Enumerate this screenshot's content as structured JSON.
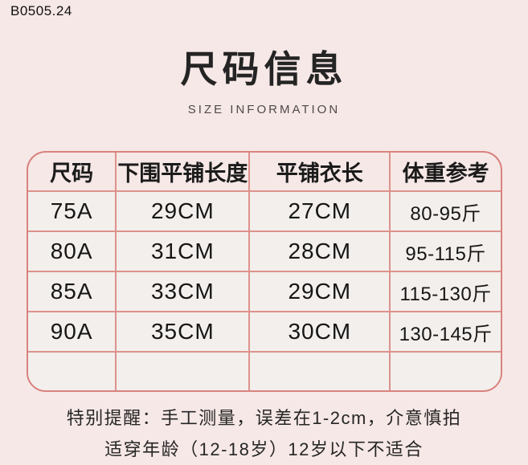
{
  "watermark": "B0505.24",
  "header": {
    "title": "尺码信息",
    "subtitle": "SIZE INFORMATION"
  },
  "size_table": {
    "columns": [
      "尺码",
      "下围平铺长度",
      "平铺衣长",
      "体重参考"
    ],
    "rows": [
      [
        "75A",
        "29CM",
        "27CM",
        "80-95斤"
      ],
      [
        "80A",
        "31CM",
        "28CM",
        "95-115斤"
      ],
      [
        "85A",
        "33CM",
        "29CM",
        "115-130斤"
      ],
      [
        "90A",
        "35CM",
        "30CM",
        "130-145斤"
      ]
    ]
  },
  "notes": {
    "line1": "特别提醒：手工测量，误差在1-2cm，介意慎拍",
    "line2": "适穿年龄（12-18岁）12岁以下不适合"
  },
  "colors": {
    "page_background": "#f6e8e6",
    "table_border": "#d8837f",
    "grid_line": "#dd928c",
    "cell_background": "#f3efec",
    "text": "#1d1d1d"
  }
}
